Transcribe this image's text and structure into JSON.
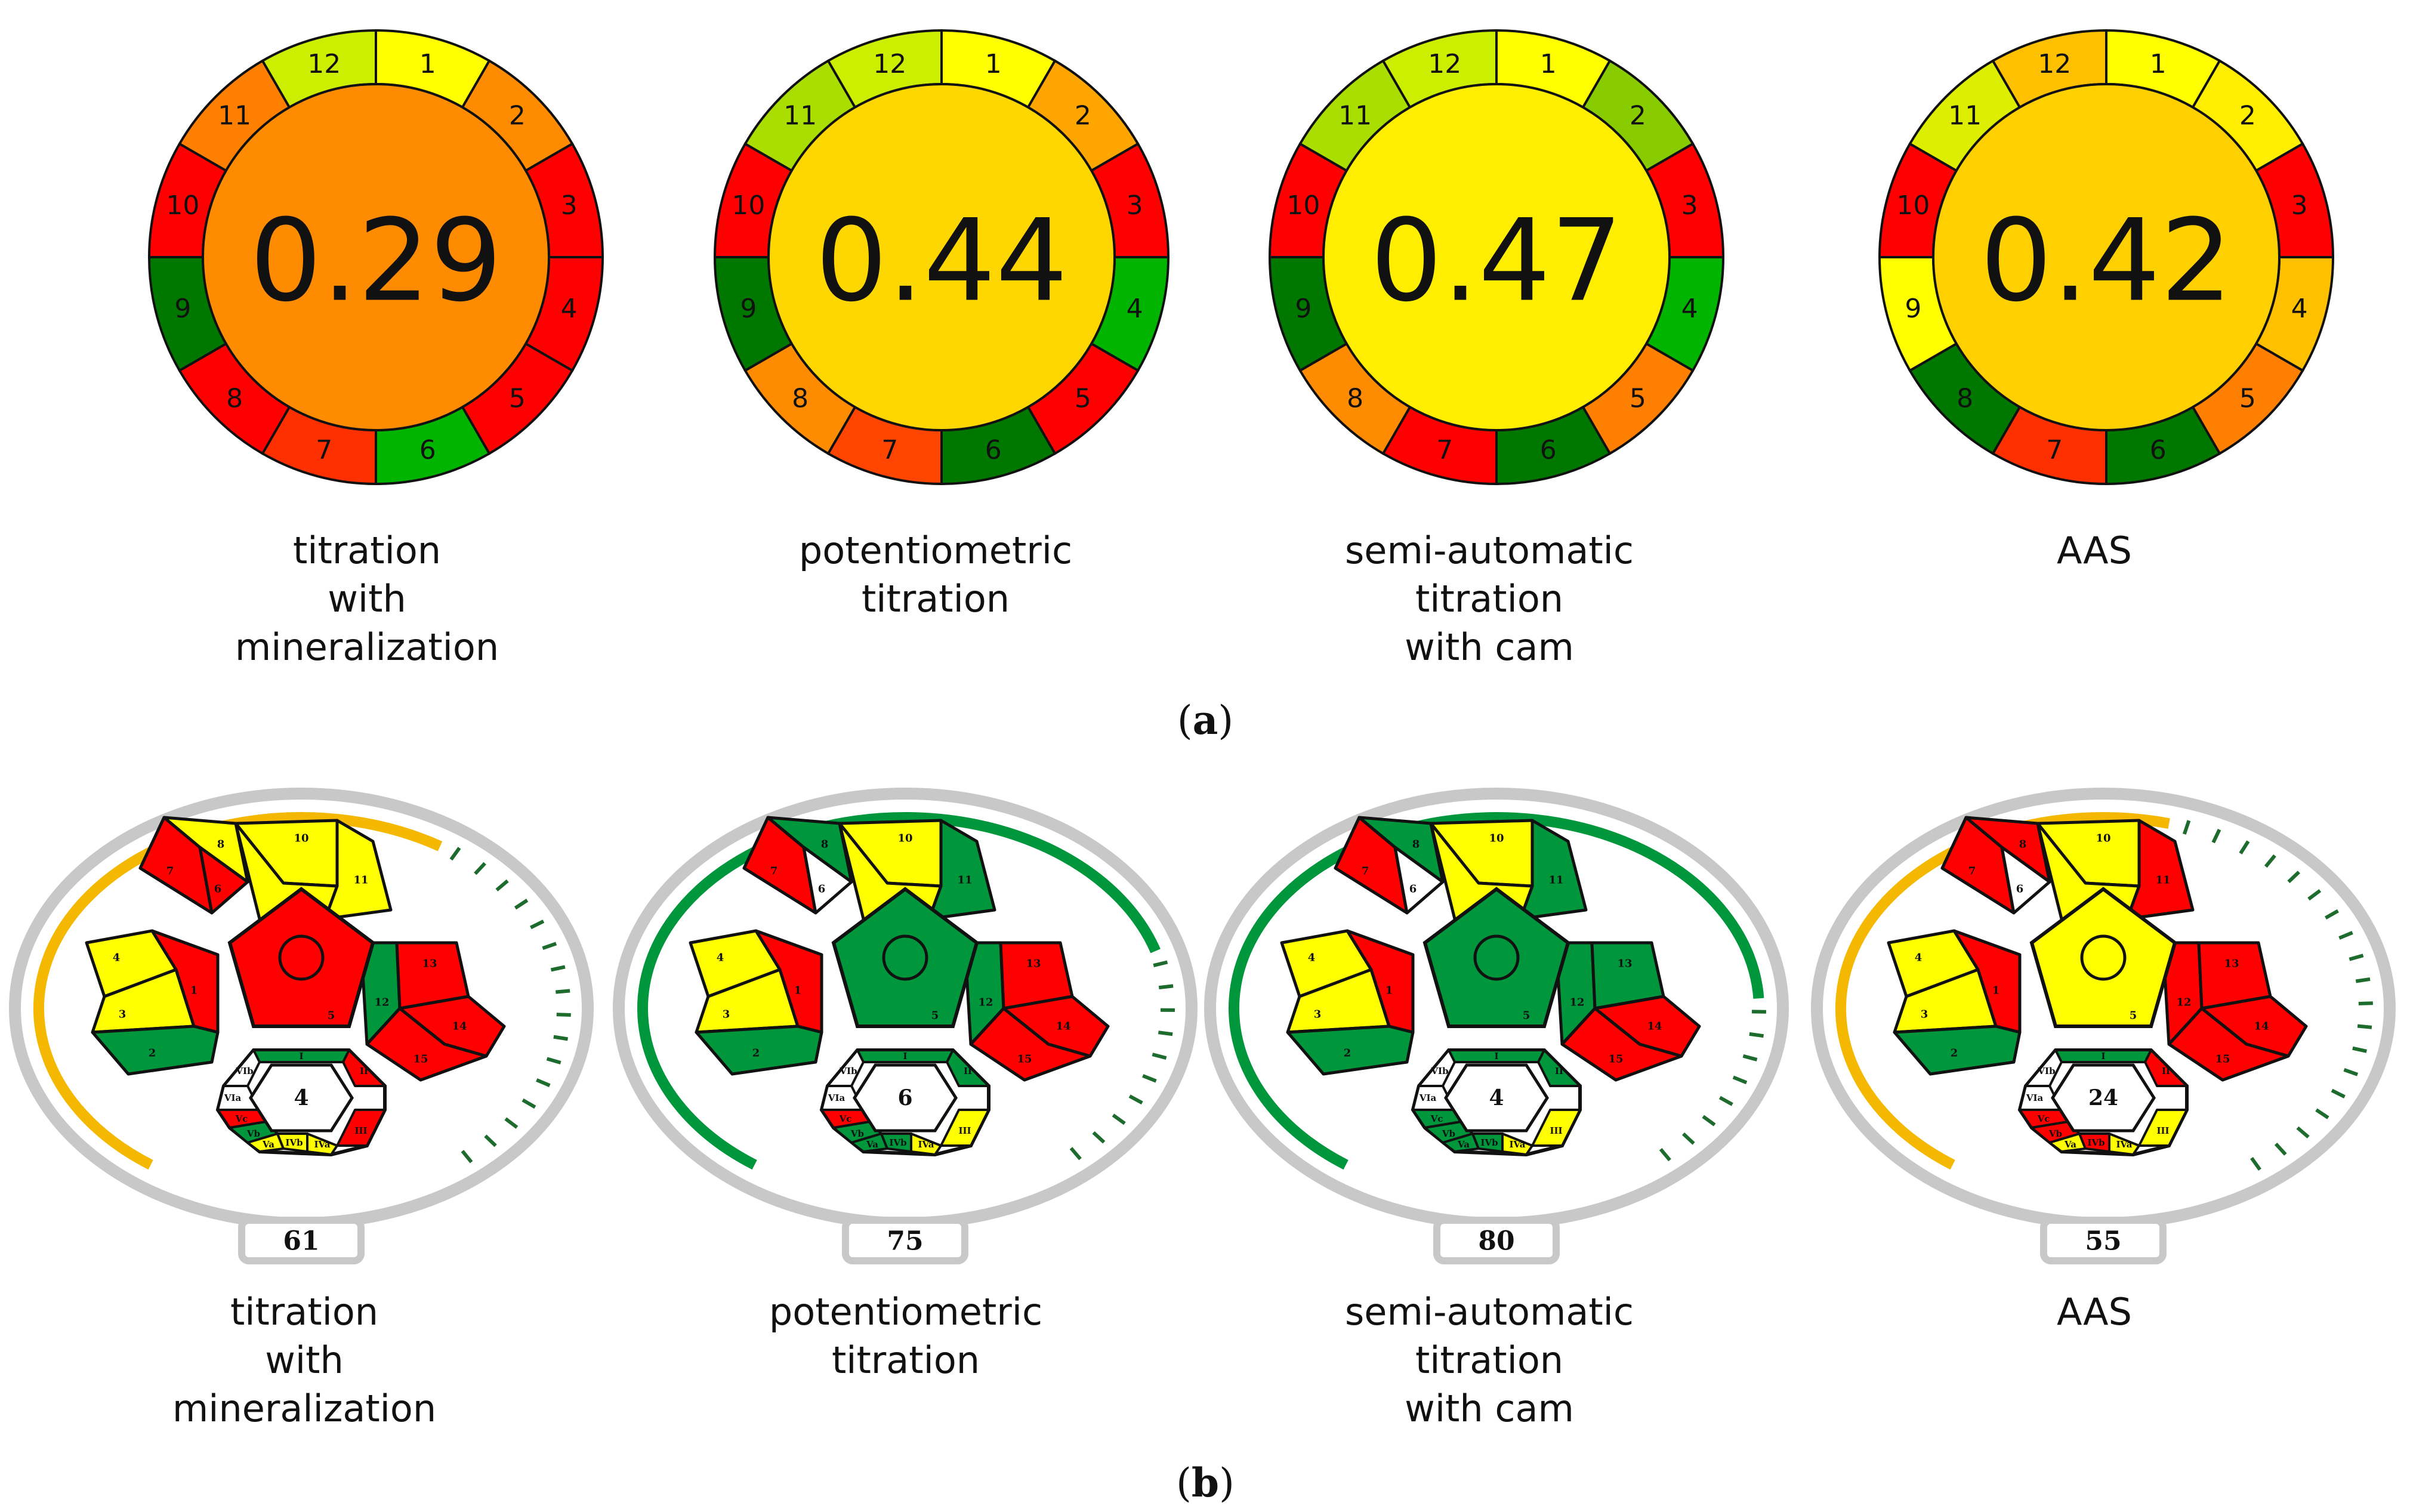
{
  "agree_panel": {
    "label": "(a)",
    "label_open": "(",
    "label_letter": "a",
    "label_close": ")",
    "methods": [
      {
        "name": "titration with mineralization",
        "caption": "titration\nwith\nmineralization",
        "score_text": "0.29",
        "score_color": "#FF8C00",
        "segments": [
          {
            "label": "1",
            "color": "#FFFF00"
          },
          {
            "label": "2",
            "color": "#FF8C00"
          },
          {
            "label": "3",
            "color": "#FF0000"
          },
          {
            "label": "4",
            "color": "#FF0000"
          },
          {
            "label": "5",
            "color": "#FF0000"
          },
          {
            "label": "6",
            "color": "#00B400"
          },
          {
            "label": "7",
            "color": "#FF3000"
          },
          {
            "label": "8",
            "color": "#FF0000"
          },
          {
            "label": "9",
            "color": "#007800"
          },
          {
            "label": "10",
            "color": "#FF0000"
          },
          {
            "label": "11",
            "color": "#FF8000"
          },
          {
            "label": "12",
            "color": "#CCEE00"
          }
        ]
      },
      {
        "name": "potentiometric titration",
        "caption": "potentiometric\ntitration",
        "score_text": "0.44",
        "score_color": "#FFD700",
        "segments": [
          {
            "label": "1",
            "color": "#FFFF00"
          },
          {
            "label": "2",
            "color": "#FFA500"
          },
          {
            "label": "3",
            "color": "#FF0000"
          },
          {
            "label": "4",
            "color": "#00B400"
          },
          {
            "label": "5",
            "color": "#FF0000"
          },
          {
            "label": "6",
            "color": "#007800"
          },
          {
            "label": "7",
            "color": "#FF4500"
          },
          {
            "label": "8",
            "color": "#FF8C00"
          },
          {
            "label": "9",
            "color": "#007800"
          },
          {
            "label": "10",
            "color": "#FF0000"
          },
          {
            "label": "11",
            "color": "#AADD00"
          },
          {
            "label": "12",
            "color": "#CCEE00"
          }
        ]
      },
      {
        "name": "semi-automatic titration with cam",
        "caption": "semi-automatic\ntitration\nwith cam",
        "score_text": "0.47",
        "score_color": "#FFEE00",
        "segments": [
          {
            "label": "1",
            "color": "#FFFF00"
          },
          {
            "label": "2",
            "color": "#88CC00"
          },
          {
            "label": "3",
            "color": "#FF0000"
          },
          {
            "label": "4",
            "color": "#00B400"
          },
          {
            "label": "5",
            "color": "#FF8000"
          },
          {
            "label": "6",
            "color": "#007800"
          },
          {
            "label": "7",
            "color": "#FF0000"
          },
          {
            "label": "8",
            "color": "#FF8C00"
          },
          {
            "label": "9",
            "color": "#007800"
          },
          {
            "label": "10",
            "color": "#FF0000"
          },
          {
            "label": "11",
            "color": "#AADD00"
          },
          {
            "label": "12",
            "color": "#CCEE00"
          }
        ]
      },
      {
        "name": "AAS",
        "caption": "AAS",
        "score_text": "0.42",
        "score_color": "#FFD000",
        "segments": [
          {
            "label": "1",
            "color": "#FFFF00"
          },
          {
            "label": "2",
            "color": "#FFEE00"
          },
          {
            "label": "3",
            "color": "#FF0000"
          },
          {
            "label": "4",
            "color": "#FFC000"
          },
          {
            "label": "5",
            "color": "#FF8000"
          },
          {
            "label": "6",
            "color": "#007800"
          },
          {
            "label": "7",
            "color": "#FF3000"
          },
          {
            "label": "8",
            "color": "#007800"
          },
          {
            "label": "9",
            "color": "#FFFF00"
          },
          {
            "label": "10",
            "color": "#FF0000"
          },
          {
            "label": "11",
            "color": "#DDEE00"
          },
          {
            "label": "12",
            "color": "#FFC000"
          }
        ]
      }
    ]
  },
  "complex_gapi_panel": {
    "label": "(b)",
    "label_open": "(",
    "label_letter": "b",
    "label_close": ")",
    "methods": [
      {
        "name": "titration with mineralization",
        "caption": "titration\nwith\nmineralization",
        "score_text": "61",
        "score_value": 61,
        "arc_color": "#F5B800",
        "hex_center": "4",
        "pent_fills": {
          "p7": "#FF0000",
          "p8": "#FFFF00",
          "p6": "#FF0000",
          "p10": "#FFFF00",
          "p9": "#FFFF00",
          "p11": "#FFFF00",
          "p4": "#FFFF00",
          "p3": "#FFFF00",
          "p1": "#FF0000",
          "p2": "#00963C",
          "p12": "#00963C",
          "p13": "#FF0000",
          "p14": "#FF0000",
          "p15": "#FF0000",
          "center": "#FF0000"
        },
        "hex_fills": {
          "top": "#00963C",
          "ii": "#FF0000",
          "iii": "#FF0000",
          "iva": "#FFFF00",
          "ivb": "#FFFF00",
          "va": "#FFFF00",
          "vb": "#00963C",
          "vc": "#FF0000",
          "via": "#FFFFFF",
          "vib": "#FFFFFF"
        }
      },
      {
        "name": "potentiometric titration",
        "caption": "potentiometric\ntitration",
        "score_text": "75",
        "score_value": 75,
        "arc_color": "#00963C",
        "hex_center": "6",
        "pent_fills": {
          "p7": "#FF0000",
          "p8": "#00963C",
          "p6": "#FFFFFF",
          "p10": "#FFFF00",
          "p9": "#FFFF00",
          "p11": "#00963C",
          "p4": "#FFFF00",
          "p3": "#FFFF00",
          "p1": "#FF0000",
          "p2": "#00963C",
          "p12": "#00963C",
          "p13": "#FF0000",
          "p14": "#FF0000",
          "p15": "#FF0000",
          "center": "#00963C"
        },
        "hex_fills": {
          "top": "#00963C",
          "ii": "#00963C",
          "iii": "#FFFF00",
          "iva": "#FFFF00",
          "ivb": "#00963C",
          "va": "#00963C",
          "vb": "#00963C",
          "vc": "#FF0000",
          "via": "#FFFFFF",
          "vib": "#FFFFFF"
        }
      },
      {
        "name": "semi-automatic titration with cam",
        "caption": "semi-automatic\ntitration\nwith cam",
        "score_text": "80",
        "score_value": 80,
        "arc_color": "#00963C",
        "hex_center": "4",
        "pent_fills": {
          "p7": "#FF0000",
          "p8": "#00963C",
          "p6": "#FFFFFF",
          "p10": "#FFFF00",
          "p9": "#FFFF00",
          "p11": "#00963C",
          "p4": "#FFFF00",
          "p3": "#FFFF00",
          "p1": "#FF0000",
          "p2": "#00963C",
          "p12": "#00963C",
          "p13": "#00963C",
          "p14": "#FF0000",
          "p15": "#FF0000",
          "center": "#00963C"
        },
        "hex_fills": {
          "top": "#00963C",
          "ii": "#00963C",
          "iii": "#FFFF00",
          "iva": "#FFFF00",
          "ivb": "#00963C",
          "va": "#00963C",
          "vb": "#00963C",
          "vc": "#00963C",
          "via": "#FFFFFF",
          "vib": "#FFFFFF"
        }
      },
      {
        "name": "AAS",
        "caption": "AAS",
        "score_text": "55",
        "score_value": 55,
        "arc_color": "#F5B800",
        "hex_center": "24",
        "pent_fills": {
          "p7": "#FF0000",
          "p8": "#FF0000",
          "p6": "#FFFFFF",
          "p10": "#FFFF00",
          "p9": "#FFFF00",
          "p11": "#FF0000",
          "p4": "#FFFF00",
          "p3": "#FFFF00",
          "p1": "#FF0000",
          "p2": "#00963C",
          "p12": "#FF0000",
          "p13": "#FF0000",
          "p14": "#FF0000",
          "p15": "#FF0000",
          "center": "#FFFF00"
        },
        "hex_fills": {
          "top": "#00963C",
          "ii": "#FF0000",
          "iii": "#FFFF00",
          "iva": "#FFFF00",
          "ivb": "#FF0000",
          "va": "#FFFF00",
          "vb": "#FF0000",
          "vc": "#FF0000",
          "via": "#FFFFFF",
          "vib": "#FFFFFF"
        }
      }
    ],
    "segment_labels": {
      "p7": "7",
      "p8": "8",
      "p6": "6",
      "p10": "10",
      "p9": "9",
      "p11": "11",
      "p4": "4",
      "p3": "3",
      "p1": "1",
      "p2": "2",
      "p12": "12",
      "p13": "13",
      "p14": "14",
      "p15": "15",
      "p5": "5",
      "top": "I",
      "ii": "II",
      "iii": "III",
      "iva": "IVa",
      "ivb": "IVb",
      "va": "Va",
      "vb": "Vb",
      "vc": "Vc",
      "via": "VIa",
      "vib": "VIb"
    }
  },
  "colors": {
    "stroke": "#111111",
    "ring_gray": "#C8C8C8",
    "tick_green": "#1E6B2E"
  }
}
